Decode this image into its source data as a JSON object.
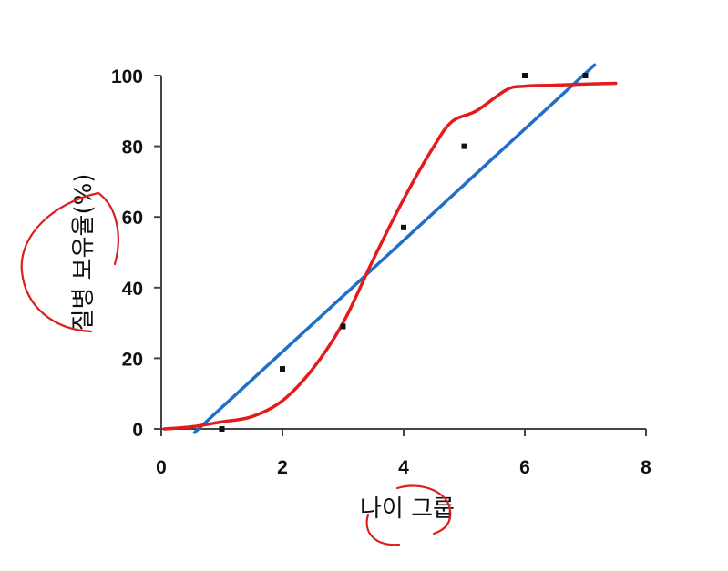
{
  "chart_data": {
    "type": "scatter",
    "title": "",
    "xlabel": "나이 그룹",
    "ylabel": "질병 보유율(%)",
    "xlim": [
      0,
      8
    ],
    "ylim": [
      0,
      100
    ],
    "x_ticks": [
      "0",
      "2",
      "4",
      "6",
      "8"
    ],
    "y_ticks": [
      "0",
      "20",
      "40",
      "60",
      "80",
      "100"
    ],
    "grid": false,
    "legend": "none",
    "points": [
      {
        "x": 1,
        "y": 0
      },
      {
        "x": 2,
        "y": 17
      },
      {
        "x": 3,
        "y": 29
      },
      {
        "x": 4,
        "y": 57
      },
      {
        "x": 5,
        "y": 80
      },
      {
        "x": 6,
        "y": 100
      },
      {
        "x": 7,
        "y": 100
      }
    ],
    "linear_fit": {
      "color": "#1f6fc8",
      "points": [
        [
          0.55,
          -1
        ],
        [
          7.15,
          103
        ]
      ]
    },
    "logistic_fit": {
      "color": "#e31b1b",
      "points": [
        [
          0.05,
          0
        ],
        [
          0.5,
          0.6
        ],
        [
          1.0,
          2
        ],
        [
          1.5,
          3.5
        ],
        [
          2.0,
          8
        ],
        [
          2.5,
          17
        ],
        [
          3.0,
          30
        ],
        [
          3.5,
          48
        ],
        [
          4.0,
          65
        ],
        [
          4.5,
          80
        ],
        [
          4.8,
          87
        ],
        [
          5.2,
          90
        ],
        [
          5.7,
          96
        ],
        [
          6.0,
          97
        ],
        [
          6.5,
          97.3
        ],
        [
          7.0,
          97.6
        ],
        [
          7.5,
          97.8
        ]
      ]
    }
  },
  "colors": {
    "axis": "#444444",
    "marker": "#111111",
    "annotation": "#d9201e"
  }
}
